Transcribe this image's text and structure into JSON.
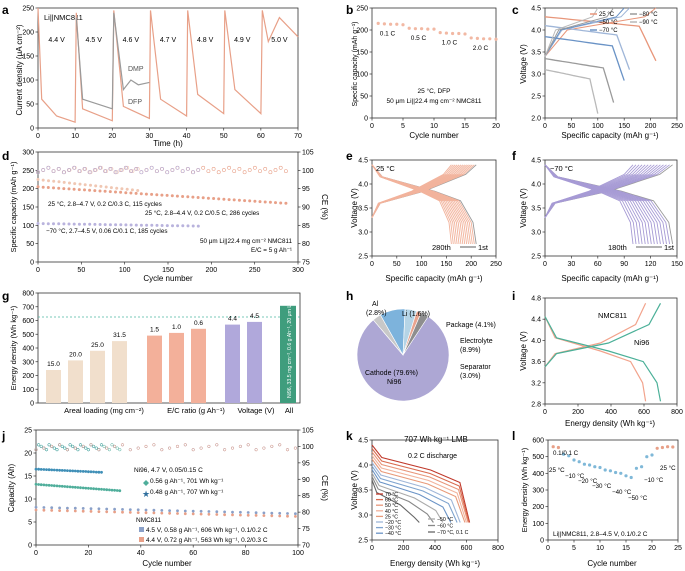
{
  "panels": {
    "a": {
      "label": "a",
      "ylabel": "Current density (μA cm⁻²)",
      "xlabel": "Time (h)",
      "yticks": [
        "0",
        "50",
        "100",
        "150",
        "200",
        "250"
      ],
      "xticks": [
        "0",
        "10",
        "20",
        "30",
        "40",
        "50",
        "60",
        "70"
      ],
      "annotations": {
        "cell": "Li||NMC811",
        "dmp": "DMP",
        "dfp": "DFP"
      },
      "voltages": [
        "4.4 V",
        "4.5 V",
        "4.6 V",
        "4.7 V",
        "4.8 V",
        "4.9 V",
        "5.0 V"
      ],
      "colors": {
        "dfp": "#e8a088",
        "dmp": "#9a9a9a"
      }
    },
    "b": {
      "label": "b",
      "ylabel": "Specific capacity (mAh g⁻¹)",
      "xlabel": "Cycle number",
      "yticks": [
        "0",
        "50",
        "100",
        "150",
        "200",
        "250"
      ],
      "xticks": [
        "0",
        "5",
        "10",
        "15",
        "20"
      ],
      "rates": [
        "0.1 C",
        "0.5 C",
        "1.0 C",
        "2.0 C"
      ],
      "note1": "25 °C, DFP",
      "note2": "50 μm Li||22.4 mg cm⁻² NMC811"
    },
    "c": {
      "label": "c",
      "ylabel": "Voltage (V)",
      "xlabel": "Specific capacity (mAh g⁻¹)",
      "yticks": [
        "2.0",
        "2.5",
        "3.0",
        "3.5",
        "4.0",
        "4.5"
      ],
      "xticks": [
        "0",
        "50",
        "100",
        "150",
        "200",
        "250"
      ],
      "legend": [
        {
          "t": "25 °C",
          "c": "#e8967a"
        },
        {
          "t": "−50 °C",
          "c": "#9fb6d8"
        },
        {
          "t": "−70 °C",
          "c": "#6a93c6"
        },
        {
          "t": "−80 °C",
          "c": "#9a9a9a"
        },
        {
          "t": "−90 °C",
          "c": "#b9b9b9"
        }
      ]
    },
    "d": {
      "label": "d",
      "ylabel": "Specific capacity (mAh g⁻¹)",
      "ylabel2": "CE (%)",
      "xlabel": "Cycle number",
      "yticks": [
        "0",
        "50",
        "100",
        "150",
        "200",
        "250",
        "300"
      ],
      "y2ticks": [
        "75",
        "80",
        "85",
        "90",
        "95",
        "100",
        "105"
      ],
      "xticks": [
        "0",
        "50",
        "100",
        "150",
        "200",
        "250",
        "300"
      ],
      "notes": [
        "25 °C, 2.8–4.7 V, 0.2 C/0.3 C, 115 cycles",
        "25 °C, 2.8–4.4 V, 0.2 C/0.5 C, 286 cycles",
        "−70 °C, 2.7–4.5 V, 0.06 C/0.1 C, 185 cycles",
        "50 μm Li||22.4 mg cm⁻² NMC811",
        "E/C = 5 g Ah⁻¹"
      ]
    },
    "e": {
      "label": "e",
      "ylabel": "Voltage (V)",
      "xlabel": "Specific capacity (mAh g⁻¹)",
      "yticks": [
        "2.5",
        "3.0",
        "3.5",
        "4.0",
        "4.5"
      ],
      "xticks": [
        "0",
        "50",
        "100",
        "150",
        "200",
        "250"
      ],
      "temp": "25 °C",
      "last": "280th",
      "first": "1st"
    },
    "f": {
      "label": "f",
      "ylabel": "Voltage (V)",
      "xlabel": "Specific capacity (mAh g⁻¹)",
      "yticks": [
        "2.5",
        "3.0",
        "3.5",
        "4.0",
        "4.5"
      ],
      "xticks": [
        "0",
        "30",
        "60",
        "90",
        "120",
        "150"
      ],
      "temp": "−70 °C",
      "last": "180th",
      "first": "1st"
    },
    "g": {
      "label": "g",
      "ylabel": "Energy density (Wh kg⁻¹)",
      "yticks": [
        "0",
        "100",
        "200",
        "300",
        "400",
        "500",
        "600",
        "700",
        "800"
      ],
      "groups": [
        "Areal loading (mg cm⁻²)",
        "E/C ratio (g Ah⁻¹)",
        "Voltage (V)",
        "All"
      ],
      "bar_labels": [
        "15.0",
        "20.0",
        "25.0",
        "31.5",
        "1.5",
        "1.0",
        "0.6",
        "4.4",
        "4.5"
      ],
      "all_text": "Ni96, 33.5 mg cm⁻², 0.6 g Ah⁻¹, 20 μm Li, 4.7 V"
    },
    "h": {
      "label": "h",
      "total": "707 Wh kg⁻¹ LMB",
      "slices": [
        {
          "t": "Cathode (79.6%) Ni96",
          "c": "#ada7d4",
          "v": 79.6
        },
        {
          "t": "Separator (3.0%)",
          "c": "#c8c8c8",
          "v": 3.0
        },
        {
          "t": "Electrolyte (8.9%)",
          "c": "#7db3dc",
          "v": 8.9
        },
        {
          "t": "Package (4.1%)",
          "c": "#b5d4e6",
          "v": 4.1
        },
        {
          "t": "Li (1.6%)",
          "c": "#e9a48e",
          "v": 1.6
        },
        {
          "t": "Al (2.8%)",
          "c": "#8e8e8e",
          "v": 2.8
        }
      ]
    },
    "i": {
      "label": "i",
      "ylabel": "Voltage (V)",
      "xlabel": "Energy density (Wh kg⁻¹)",
      "yticks": [
        "2.8",
        "3.2",
        "3.6",
        "4.0",
        "4.4",
        "4.8"
      ],
      "xticks": [
        "0",
        "200",
        "400",
        "600",
        "800"
      ],
      "l1": "NMC811",
      "l2": "Ni96"
    },
    "j": {
      "label": "j",
      "ylabel": "Capacity (Ah)",
      "ylabel2": "CE (%)",
      "xlabel": "Cycle number",
      "yticks": [
        "0",
        "5",
        "10",
        "15",
        "20",
        "25"
      ],
      "y2ticks": [
        "70",
        "75",
        "80",
        "85",
        "90",
        "95",
        "100",
        "105"
      ],
      "xticks": [
        "0",
        "20",
        "40",
        "60",
        "80",
        "100"
      ],
      "notes": [
        "Ni96, 4.7 V, 0.05/0.15 C",
        "0.56 g Ah⁻¹, 701 Wh kg⁻¹",
        "0.48 g Ah⁻¹, 707 Wh kg⁻¹",
        "NMC811",
        "4.5 V, 0.58 g Ah⁻¹, 606 Wh kg⁻¹, 0.1/0.2 C",
        "4.4 V, 0.72 g Ah⁻¹, 563 Wh kg⁻¹, 0.2/0.3 C"
      ]
    },
    "k": {
      "label": "k",
      "ylabel": "Voltage (V)",
      "xlabel": "Energy density (Wh kg⁻¹)",
      "yticks": [
        "2.5",
        "3.0",
        "3.5",
        "4.0",
        "4.5"
      ],
      "xticks": [
        "0",
        "200",
        "400",
        "600",
        "800"
      ],
      "title": "0.2 C discharge",
      "legend_left": [
        "70 °C",
        "60 °C",
        "50 °C",
        "40 °C",
        "25 °C",
        "−20 °C",
        "−30 °C",
        "−40 °C"
      ],
      "legend_right": [
        "−50 °C",
        "−60 °C",
        "−70 °C, 0.1 C"
      ]
    },
    "l": {
      "label": "l",
      "ylabel": "Energy density (Wh kg⁻¹)",
      "xlabel": "Cycle number",
      "yticks": [
        "0",
        "100",
        "200",
        "300",
        "400",
        "500",
        "600"
      ],
      "xticks": [
        "0",
        "5",
        "10",
        "15",
        "20",
        "25"
      ],
      "labels": [
        "0.1/0.1 C",
        "25 °C",
        "−10 °C",
        "−20 °C",
        "−30 °C",
        "−40 °C",
        "−50 °C",
        "−10 °C",
        "25 °C"
      ],
      "note": "Li||NMC811, 2.8–4.5 V, 0.1/0.2 C"
    }
  },
  "chart_data": [
    {
      "panel": "a",
      "type": "line",
      "x": [
        0,
        10,
        20,
        30,
        40,
        50,
        60,
        70
      ],
      "xlabel": "Time (h)",
      "ylabel": "Current density (μA cm⁻²)",
      "ylim": [
        0,
        250
      ],
      "xlim": [
        0,
        70
      ],
      "series": [
        {
          "name": "DFP",
          "points": [
            [
              0,
              250
            ],
            [
              1,
              60
            ],
            [
              5,
              25
            ],
            [
              10,
              12
            ],
            [
              10.3,
              240
            ],
            [
              12,
              40
            ],
            [
              20,
              15
            ],
            [
              20.4,
              245
            ],
            [
              23,
              45
            ],
            [
              30,
              20
            ],
            [
              30.3,
              245
            ],
            [
              33,
              60
            ],
            [
              40,
              25
            ],
            [
              40.3,
              245
            ],
            [
              43,
              70
            ],
            [
              50,
              30
            ],
            [
              50.3,
              245
            ],
            [
              53,
              80
            ],
            [
              60,
              30
            ],
            [
              60.4,
              245
            ],
            [
              62,
              180
            ],
            [
              65,
              230
            ],
            [
              70,
              190
            ]
          ]
        },
        {
          "name": "DMP",
          "points": [
            [
              10.3,
              230
            ],
            [
              12,
              60
            ],
            [
              20,
              40
            ],
            [
              20.4,
              240
            ],
            [
              23,
              80
            ],
            [
              25,
              100
            ],
            [
              27,
              90
            ],
            [
              30,
              95
            ]
          ]
        }
      ]
    },
    {
      "panel": "b",
      "type": "scatter",
      "x": [
        1,
        2,
        3,
        4,
        5,
        6,
        7,
        8,
        9,
        10,
        11,
        12,
        13,
        14,
        15,
        16,
        17,
        18,
        19,
        20
      ],
      "y": [
        215,
        214,
        213,
        213,
        212,
        204,
        203,
        203,
        202,
        202,
        194,
        193,
        192,
        192,
        191,
        182,
        181,
        180,
        180,
        179
      ],
      "xlim": [
        0,
        20
      ],
      "ylim": [
        0,
        250
      ]
    },
    {
      "panel": "d",
      "type": "scatter",
      "xlim": [
        0,
        300
      ],
      "ylim": [
        0,
        300
      ],
      "series": [
        {
          "name": "25 °C, 2.8–4.7 V, 0.2 C/0.3 C, 115 cycles",
          "x": [
            0,
            115
          ],
          "y": [
            225,
            195
          ]
        },
        {
          "name": "25 °C, 2.8–4.4 V, 0.2 C/0.5 C, 286 cycles",
          "x": [
            0,
            286
          ],
          "y": [
            205,
            160
          ]
        },
        {
          "name": "−70 °C, 2.7–4.5 V, 0.06 C/0.1 C, 185 cycles",
          "x": [
            0,
            185
          ],
          "y": [
            105,
            98
          ]
        }
      ]
    },
    {
      "panel": "g",
      "type": "bar",
      "categories": [
        "15.0",
        "20.0",
        "25.0",
        "31.5",
        "1.5",
        "1.0",
        "0.6",
        "4.4",
        "4.5",
        "All"
      ],
      "values": [
        240,
        310,
        380,
        450,
        490,
        510,
        540,
        570,
        590,
        707
      ],
      "ylim": [
        0,
        800
      ]
    },
    {
      "panel": "h",
      "type": "pie",
      "categories": [
        "Cathode",
        "Separator",
        "Electrolyte",
        "Package",
        "Li",
        "Al"
      ],
      "values": [
        79.6,
        3.0,
        8.9,
        4.1,
        1.6,
        2.8
      ]
    },
    {
      "panel": "l",
      "type": "scatter",
      "x": [
        1,
        2,
        3,
        4,
        5,
        6,
        7,
        8,
        9,
        10,
        11,
        12,
        13,
        14,
        15,
        16,
        17,
        18,
        19,
        20,
        21,
        22,
        23,
        24
      ],
      "y": [
        560,
        555,
        515,
        505,
        480,
        470,
        455,
        450,
        440,
        435,
        420,
        415,
        405,
        400,
        385,
        375,
        430,
        440,
        500,
        510,
        550,
        555,
        560,
        558
      ],
      "ylim": [
        0,
        600
      ],
      "xlim": [
        0,
        25
      ]
    }
  ]
}
